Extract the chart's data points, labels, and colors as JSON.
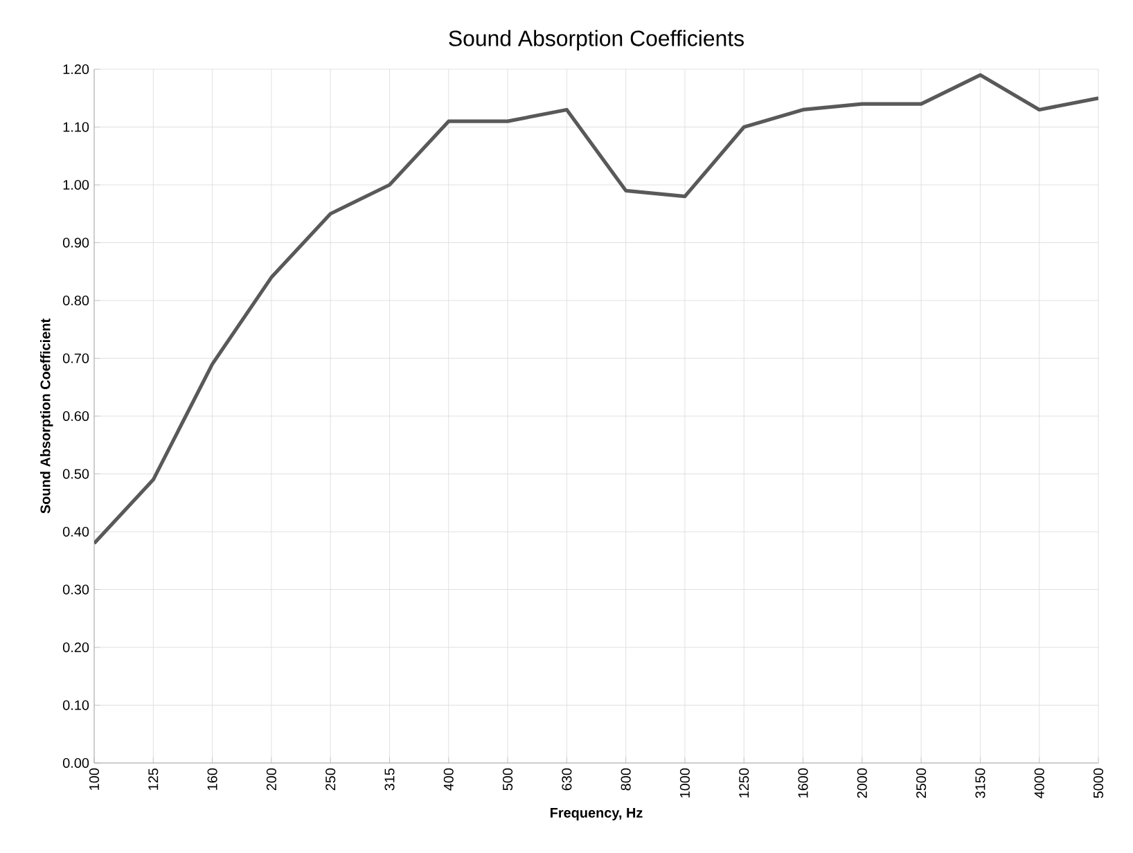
{
  "chart_data": {
    "type": "line",
    "title": "Sound Absorption Coefficients",
    "xlabel": "Frequency, Hz",
    "ylabel": "Sound Absorption Coefficient",
    "categories": [
      "100",
      "125",
      "160",
      "200",
      "250",
      "315",
      "400",
      "500",
      "630",
      "800",
      "1000",
      "1250",
      "1600",
      "2000",
      "2500",
      "3150",
      "4000",
      "5000"
    ],
    "series": [
      {
        "color": "#595959",
        "values": [
          0.38,
          0.49,
          0.69,
          0.84,
          0.95,
          1.0,
          1.11,
          1.11,
          1.13,
          0.99,
          0.98,
          1.1,
          1.13,
          1.14,
          1.14,
          1.19,
          1.13,
          1.15
        ]
      }
    ],
    "ylim": [
      0,
      1.2
    ],
    "yticks": [
      {
        "value": 0,
        "label": "0.00"
      },
      {
        "value": 0.1,
        "label": "0.10"
      },
      {
        "value": 0.2,
        "label": "0.20"
      },
      {
        "value": 0.3,
        "label": "0.30"
      },
      {
        "value": 0.4,
        "label": "0.40"
      },
      {
        "value": 0.5,
        "label": "0.50"
      },
      {
        "value": 0.6,
        "label": "0.60"
      },
      {
        "value": 0.7,
        "label": "0.70"
      },
      {
        "value": 0.8,
        "label": "0.80"
      },
      {
        "value": 0.9,
        "label": "0.90"
      },
      {
        "value": 1.0,
        "label": "1.00"
      },
      {
        "value": 1.1,
        "label": "1.10"
      },
      {
        "value": 1.2,
        "label": "1.20"
      }
    ],
    "grid": true,
    "marker": "none",
    "line_style": "solid"
  }
}
